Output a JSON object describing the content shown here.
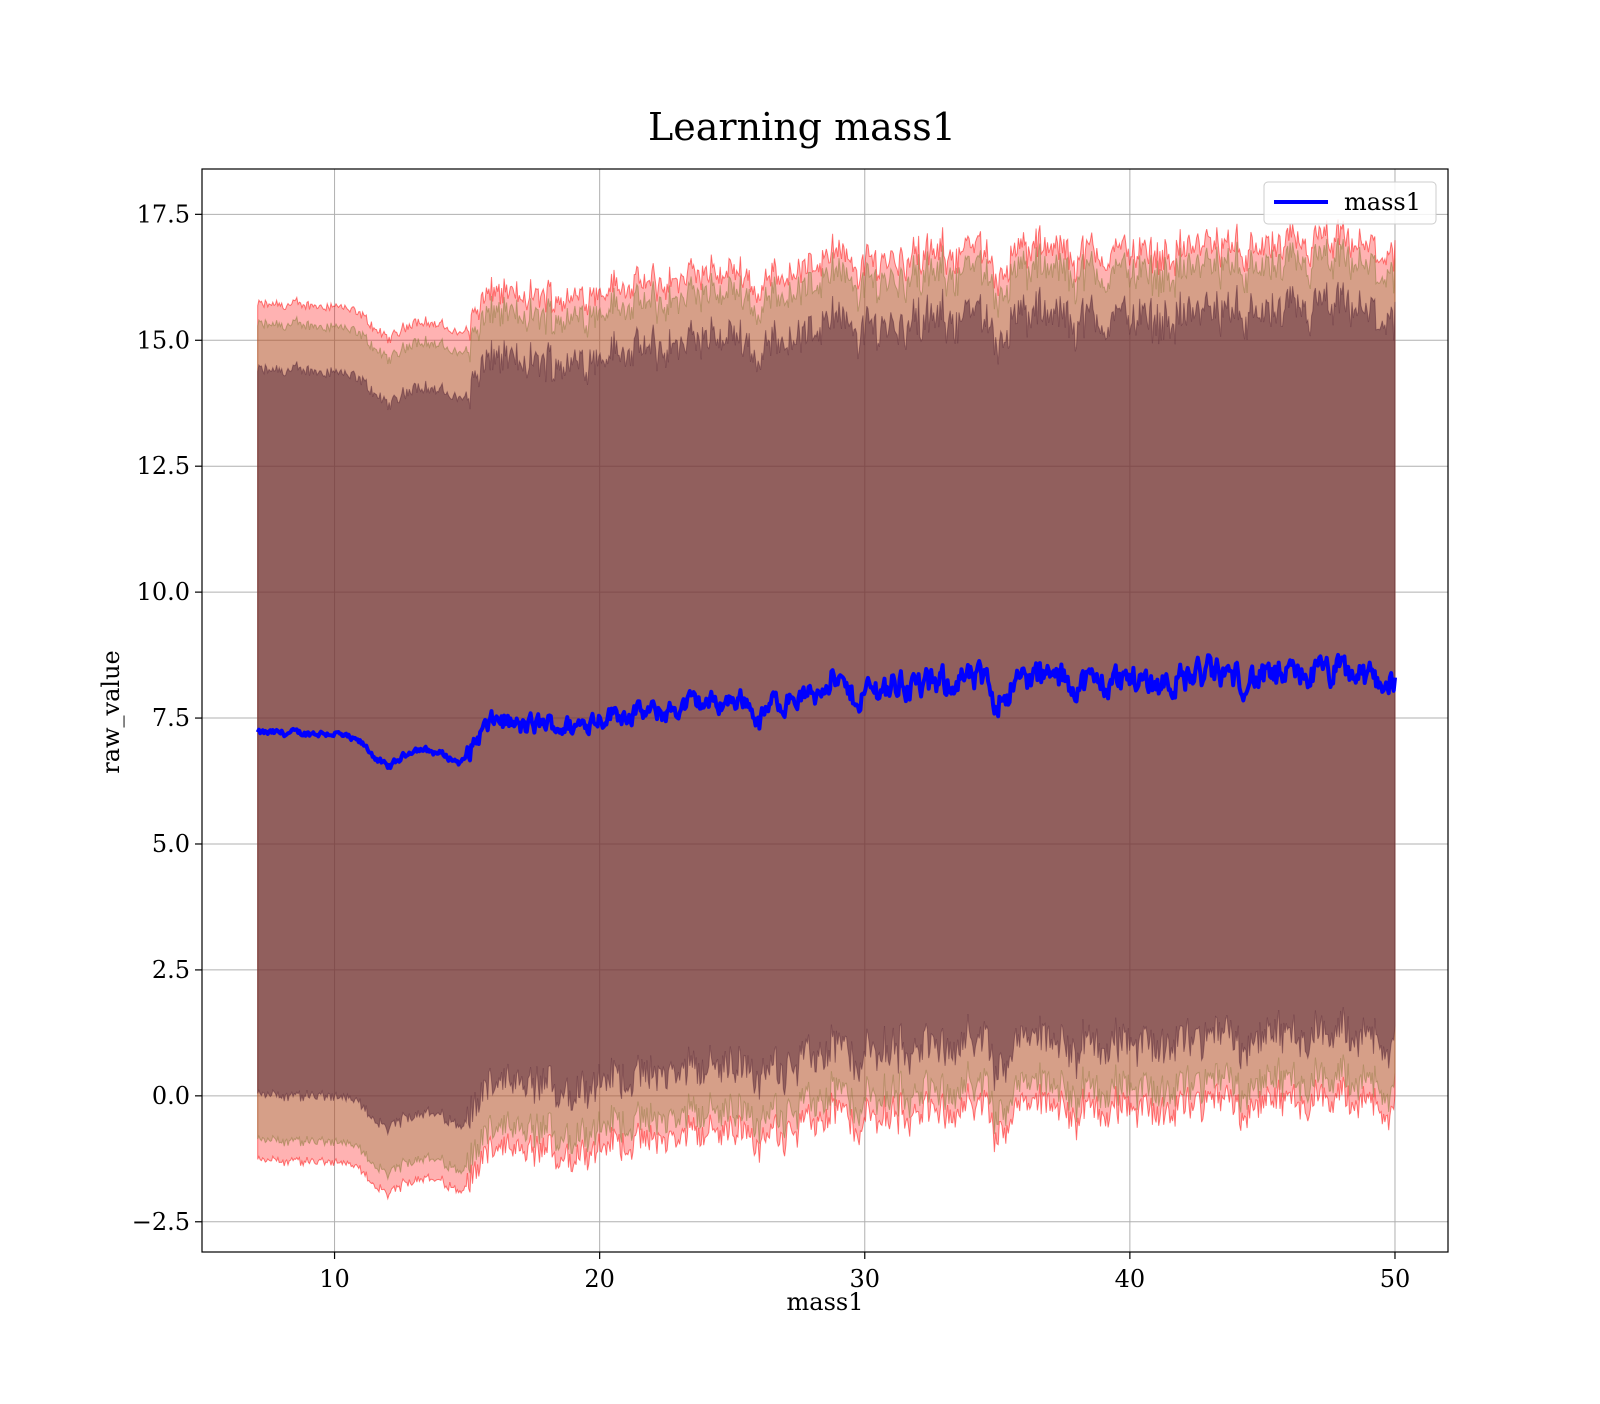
{
  "chart_data": {
    "type": "line",
    "title": "Learning mass1",
    "xlabel": "mass1",
    "ylabel": "raw_value",
    "xlim": [
      5,
      52
    ],
    "ylim": [
      -3.1,
      18.4
    ],
    "x_ticks": [
      10,
      20,
      30,
      40,
      50
    ],
    "x_tick_labels": [
      "10",
      "20",
      "30",
      "40",
      "50"
    ],
    "y_ticks": [
      -2.5,
      0,
      2.5,
      5,
      7.5,
      10,
      12.5,
      15,
      17.5
    ],
    "y_tick_labels": [
      "−2.5",
      "0.0",
      "2.5",
      "5.0",
      "7.5",
      "10.0",
      "12.5",
      "15.0",
      "17.5"
    ],
    "grid": true,
    "legend": {
      "position": "top-right",
      "entries": [
        "mass1"
      ]
    },
    "colors": {
      "line": "#0000ff",
      "band_outer": "#ff0000",
      "band_middle": "#8a7a3a",
      "band_inner": "#5a2a3a",
      "grid": "#b0b0b0"
    },
    "x_range": [
      7.1,
      50
    ],
    "series": [
      {
        "name": "mass1",
        "x": [
          7.1,
          8,
          9,
          10,
          11,
          12,
          13,
          14,
          14.8,
          15.5,
          16.2,
          17,
          18,
          19,
          19.8,
          20.5,
          21.5,
          22.5,
          23.5,
          24.5,
          25.5,
          26,
          26.5,
          27.5,
          28.2,
          28.6,
          29.5,
          30.5,
          31.5,
          32.5,
          33.5,
          34.5,
          35,
          36,
          37,
          38,
          39,
          40,
          41,
          42,
          43,
          44,
          45,
          46,
          47,
          48,
          49,
          50
        ],
        "y": [
          7.2,
          7.2,
          7.2,
          7.2,
          7.0,
          6.5,
          6.9,
          6.8,
          6.6,
          7.2,
          7.5,
          7.3,
          7.4,
          7.3,
          7.5,
          7.6,
          7.6,
          7.6,
          7.8,
          7.8,
          7.9,
          7.4,
          7.8,
          7.9,
          8.0,
          8.4,
          7.9,
          8.1,
          8.2,
          8.1,
          8.3,
          8.2,
          7.9,
          8.3,
          8.3,
          8.2,
          8.2,
          8.3,
          8.2,
          8.3,
          8.4,
          8.3,
          8.3,
          8.3,
          8.4,
          8.4,
          8.3,
          8.2
        ]
      }
    ],
    "bands": [
      {
        "sigma": 1,
        "offset_upper": 7.2,
        "offset_lower": 7.2
      },
      {
        "sigma": 2,
        "offset_upper": 8.1,
        "offset_lower": 8.1
      },
      {
        "sigma": 3,
        "offset_upper": 8.5,
        "offset_lower": 8.5
      }
    ]
  }
}
